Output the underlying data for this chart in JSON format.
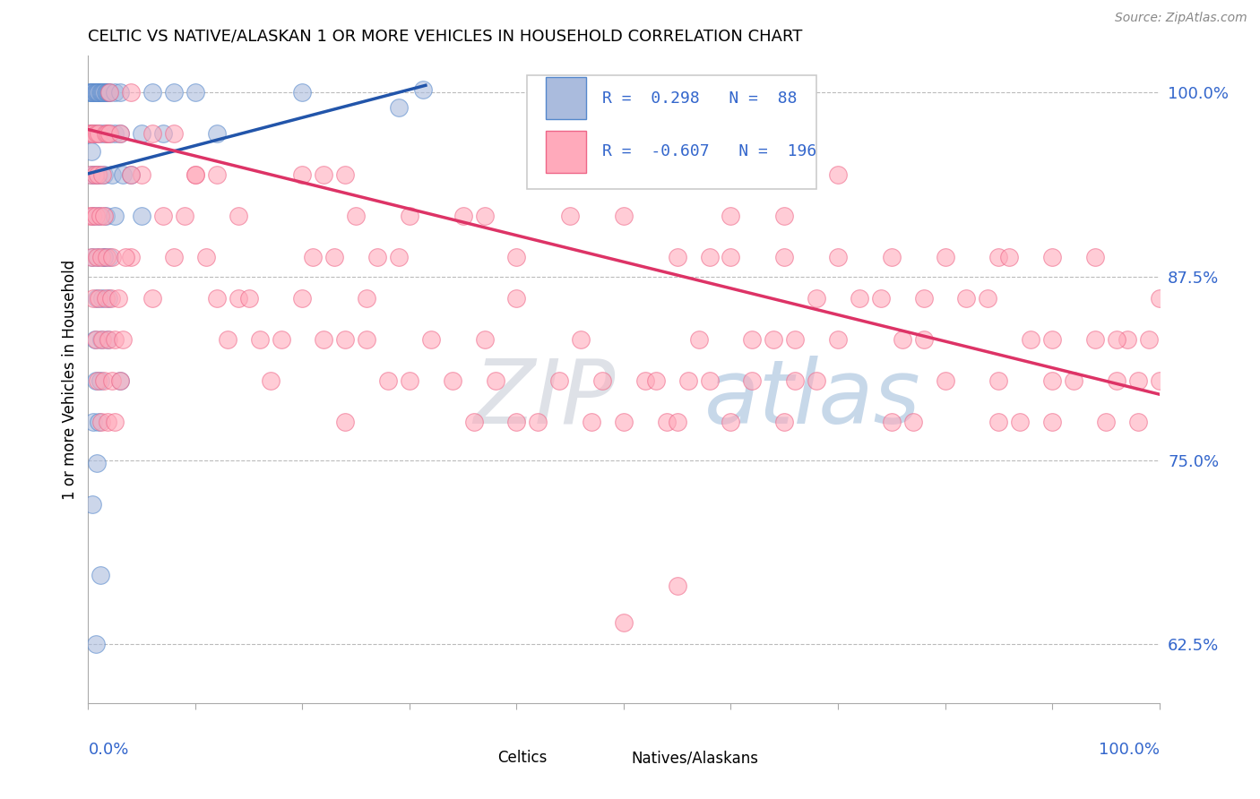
{
  "title": "CELTIC VS NATIVE/ALASKAN 1 OR MORE VEHICLES IN HOUSEHOLD CORRELATION CHART",
  "source": "Source: ZipAtlas.com",
  "ylabel": "1 or more Vehicles in Household",
  "ytick_labels": [
    "62.5%",
    "75.0%",
    "87.5%",
    "100.0%"
  ],
  "ytick_values": [
    0.625,
    0.75,
    0.875,
    1.0
  ],
  "xmin": 0.0,
  "xmax": 1.0,
  "ymin": 0.585,
  "ymax": 1.025,
  "R_blue": "0.298",
  "N_blue": "88",
  "R_pink": "-0.607",
  "N_pink": "196",
  "blue_scatter_color": "#aabbdd",
  "pink_scatter_color": "#ffaabb",
  "blue_edge_color": "#5588cc",
  "pink_edge_color": "#ee6688",
  "blue_line_color": "#2255aa",
  "pink_line_color": "#dd3366",
  "blue_line_x": [
    0.0,
    0.315
  ],
  "blue_line_y": [
    0.945,
    1.005
  ],
  "pink_line_x": [
    0.0,
    1.0
  ],
  "pink_line_y": [
    0.975,
    0.795
  ],
  "watermark_zip_color": "#c0c8d8",
  "watermark_atlas_color": "#a8c0d8",
  "blue_dots": [
    [
      0.001,
      1.0
    ],
    [
      0.002,
      1.0
    ],
    [
      0.003,
      1.0
    ],
    [
      0.004,
      1.0
    ],
    [
      0.005,
      1.0
    ],
    [
      0.006,
      1.0
    ],
    [
      0.007,
      1.0
    ],
    [
      0.008,
      1.0
    ],
    [
      0.009,
      1.0
    ],
    [
      0.01,
      1.0
    ],
    [
      0.011,
      1.0
    ],
    [
      0.012,
      1.0
    ],
    [
      0.013,
      1.0
    ],
    [
      0.014,
      1.0
    ],
    [
      0.015,
      1.0
    ],
    [
      0.016,
      1.0
    ],
    [
      0.017,
      1.0
    ],
    [
      0.018,
      1.0
    ],
    [
      0.019,
      1.0
    ],
    [
      0.02,
      1.0
    ],
    [
      0.025,
      1.0
    ],
    [
      0.03,
      1.0
    ],
    [
      0.06,
      1.0
    ],
    [
      0.08,
      1.0
    ],
    [
      0.2,
      1.0
    ],
    [
      0.002,
      0.972
    ],
    [
      0.005,
      0.972
    ],
    [
      0.008,
      0.972
    ],
    [
      0.012,
      0.972
    ],
    [
      0.016,
      0.972
    ],
    [
      0.02,
      0.972
    ],
    [
      0.025,
      0.972
    ],
    [
      0.03,
      0.972
    ],
    [
      0.05,
      0.972
    ],
    [
      0.07,
      0.972
    ],
    [
      0.12,
      0.972
    ],
    [
      0.003,
      0.944
    ],
    [
      0.006,
      0.944
    ],
    [
      0.01,
      0.944
    ],
    [
      0.015,
      0.944
    ],
    [
      0.022,
      0.944
    ],
    [
      0.032,
      0.944
    ],
    [
      0.04,
      0.944
    ],
    [
      0.005,
      0.916
    ],
    [
      0.01,
      0.916
    ],
    [
      0.016,
      0.916
    ],
    [
      0.025,
      0.916
    ],
    [
      0.05,
      0.916
    ],
    [
      0.004,
      0.888
    ],
    [
      0.009,
      0.888
    ],
    [
      0.015,
      0.888
    ],
    [
      0.02,
      0.888
    ],
    [
      0.008,
      0.86
    ],
    [
      0.013,
      0.86
    ],
    [
      0.019,
      0.86
    ],
    [
      0.006,
      0.832
    ],
    [
      0.012,
      0.832
    ],
    [
      0.018,
      0.832
    ],
    [
      0.007,
      0.804
    ],
    [
      0.011,
      0.804
    ],
    [
      0.03,
      0.804
    ],
    [
      0.005,
      0.776
    ],
    [
      0.01,
      0.776
    ],
    [
      0.008,
      0.748
    ],
    [
      0.004,
      0.72
    ],
    [
      0.011,
      0.672
    ],
    [
      0.007,
      0.625
    ],
    [
      0.313,
      1.002
    ],
    [
      0.29,
      0.99
    ],
    [
      0.1,
      1.0
    ],
    [
      0.015,
      0.888
    ],
    [
      0.003,
      0.96
    ]
  ],
  "pink_dots": [
    [
      0.001,
      0.972
    ],
    [
      0.003,
      0.972
    ],
    [
      0.005,
      0.972
    ],
    [
      0.008,
      0.972
    ],
    [
      0.01,
      0.972
    ],
    [
      0.016,
      0.972
    ],
    [
      0.018,
      0.972
    ],
    [
      0.02,
      0.972
    ],
    [
      0.03,
      0.972
    ],
    [
      0.06,
      0.972
    ],
    [
      0.002,
      0.944
    ],
    [
      0.006,
      0.944
    ],
    [
      0.009,
      0.944
    ],
    [
      0.013,
      0.944
    ],
    [
      0.05,
      0.944
    ],
    [
      0.1,
      0.944
    ],
    [
      0.12,
      0.944
    ],
    [
      0.2,
      0.944
    ],
    [
      0.22,
      0.944
    ],
    [
      0.24,
      0.944
    ],
    [
      0.001,
      0.916
    ],
    [
      0.004,
      0.916
    ],
    [
      0.007,
      0.916
    ],
    [
      0.011,
      0.916
    ],
    [
      0.015,
      0.916
    ],
    [
      0.07,
      0.916
    ],
    [
      0.09,
      0.916
    ],
    [
      0.14,
      0.916
    ],
    [
      0.3,
      0.916
    ],
    [
      0.25,
      0.916
    ],
    [
      0.35,
      0.916
    ],
    [
      0.37,
      0.916
    ],
    [
      0.45,
      0.916
    ],
    [
      0.5,
      0.916
    ],
    [
      0.6,
      0.916
    ],
    [
      0.65,
      0.916
    ],
    [
      0.7,
      0.944
    ],
    [
      0.003,
      0.888
    ],
    [
      0.008,
      0.888
    ],
    [
      0.012,
      0.888
    ],
    [
      0.017,
      0.888
    ],
    [
      0.022,
      0.888
    ],
    [
      0.04,
      0.888
    ],
    [
      0.08,
      0.888
    ],
    [
      0.11,
      0.888
    ],
    [
      0.27,
      0.888
    ],
    [
      0.29,
      0.888
    ],
    [
      0.21,
      0.888
    ],
    [
      0.23,
      0.888
    ],
    [
      0.4,
      0.888
    ],
    [
      0.55,
      0.888
    ],
    [
      0.58,
      0.888
    ],
    [
      0.6,
      0.888
    ],
    [
      0.65,
      0.888
    ],
    [
      0.7,
      0.888
    ],
    [
      0.75,
      0.888
    ],
    [
      0.8,
      0.888
    ],
    [
      0.85,
      0.888
    ],
    [
      0.86,
      0.888
    ],
    [
      0.9,
      0.888
    ],
    [
      0.94,
      0.888
    ],
    [
      0.005,
      0.86
    ],
    [
      0.01,
      0.86
    ],
    [
      0.016,
      0.86
    ],
    [
      0.021,
      0.86
    ],
    [
      0.028,
      0.86
    ],
    [
      0.06,
      0.86
    ],
    [
      0.12,
      0.86
    ],
    [
      0.14,
      0.86
    ],
    [
      0.15,
      0.86
    ],
    [
      0.2,
      0.86
    ],
    [
      0.26,
      0.86
    ],
    [
      0.4,
      0.86
    ],
    [
      0.68,
      0.86
    ],
    [
      0.72,
      0.86
    ],
    [
      0.74,
      0.86
    ],
    [
      0.78,
      0.86
    ],
    [
      0.82,
      0.86
    ],
    [
      0.84,
      0.86
    ],
    [
      0.007,
      0.832
    ],
    [
      0.013,
      0.832
    ],
    [
      0.019,
      0.832
    ],
    [
      0.025,
      0.832
    ],
    [
      0.032,
      0.832
    ],
    [
      0.16,
      0.832
    ],
    [
      0.18,
      0.832
    ],
    [
      0.22,
      0.832
    ],
    [
      0.24,
      0.832
    ],
    [
      0.32,
      0.832
    ],
    [
      0.46,
      0.832
    ],
    [
      0.57,
      0.832
    ],
    [
      0.62,
      0.832
    ],
    [
      0.64,
      0.832
    ],
    [
      0.66,
      0.832
    ],
    [
      0.7,
      0.832
    ],
    [
      0.76,
      0.832
    ],
    [
      0.78,
      0.832
    ],
    [
      0.88,
      0.832
    ],
    [
      0.9,
      0.832
    ],
    [
      0.94,
      0.832
    ],
    [
      0.97,
      0.832
    ],
    [
      0.99,
      0.832
    ],
    [
      0.009,
      0.804
    ],
    [
      0.015,
      0.804
    ],
    [
      0.022,
      0.804
    ],
    [
      0.03,
      0.804
    ],
    [
      0.17,
      0.804
    ],
    [
      0.28,
      0.804
    ],
    [
      0.3,
      0.804
    ],
    [
      0.34,
      0.804
    ],
    [
      0.38,
      0.804
    ],
    [
      0.48,
      0.804
    ],
    [
      0.52,
      0.804
    ],
    [
      0.56,
      0.804
    ],
    [
      0.58,
      0.804
    ],
    [
      0.62,
      0.804
    ],
    [
      0.66,
      0.804
    ],
    [
      0.68,
      0.804
    ],
    [
      0.8,
      0.804
    ],
    [
      0.85,
      0.804
    ],
    [
      0.9,
      0.804
    ],
    [
      0.92,
      0.804
    ],
    [
      0.98,
      0.804
    ],
    [
      1.0,
      0.804
    ],
    [
      0.012,
      0.776
    ],
    [
      0.018,
      0.776
    ],
    [
      0.025,
      0.776
    ],
    [
      0.24,
      0.776
    ],
    [
      0.36,
      0.776
    ],
    [
      0.4,
      0.776
    ],
    [
      0.42,
      0.776
    ],
    [
      0.47,
      0.776
    ],
    [
      0.5,
      0.776
    ],
    [
      0.54,
      0.776
    ],
    [
      0.55,
      0.776
    ],
    [
      0.6,
      0.776
    ],
    [
      0.65,
      0.776
    ],
    [
      0.75,
      0.776
    ],
    [
      0.77,
      0.776
    ],
    [
      0.85,
      0.776
    ],
    [
      0.87,
      0.776
    ],
    [
      0.9,
      0.776
    ],
    [
      0.95,
      0.776
    ],
    [
      0.96,
      0.804
    ],
    [
      0.98,
      0.776
    ],
    [
      0.04,
      0.944
    ],
    [
      0.08,
      0.972
    ],
    [
      0.1,
      0.944
    ],
    [
      0.02,
      1.0
    ],
    [
      0.04,
      1.0
    ],
    [
      0.5,
      0.64
    ],
    [
      0.55,
      0.665
    ],
    [
      1.0,
      0.86
    ],
    [
      0.96,
      0.832
    ],
    [
      0.13,
      0.832
    ],
    [
      0.26,
      0.832
    ],
    [
      0.37,
      0.832
    ],
    [
      0.44,
      0.804
    ],
    [
      0.53,
      0.804
    ],
    [
      0.035,
      0.888
    ]
  ]
}
